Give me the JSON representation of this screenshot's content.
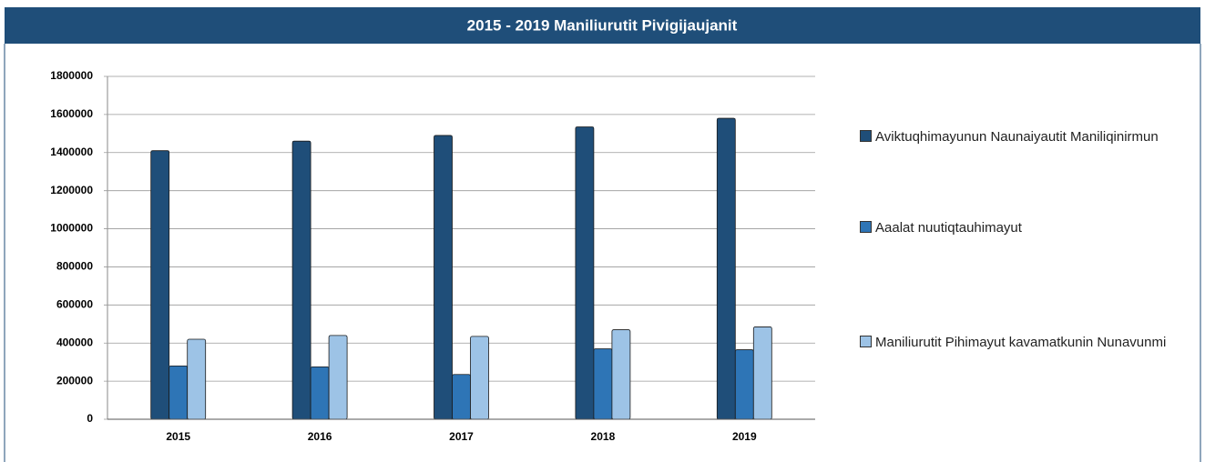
{
  "chart_data": {
    "type": "bar",
    "title": "2015 - 2019 Maniliurutit Pivigijaujanit",
    "categories": [
      "2015",
      "2016",
      "2017",
      "2018",
      "2019"
    ],
    "series": [
      {
        "name": "Aviktuqhimayunun Naunaiyautit Maniliqinirmun",
        "color": "#1f4e79",
        "values": [
          1410000,
          1460000,
          1490000,
          1535000,
          1580000
        ]
      },
      {
        "name": "Aaalat nuutiqtauhimayut",
        "color": "#2e75b6",
        "values": [
          280000,
          275000,
          235000,
          370000,
          365000
        ]
      },
      {
        "name": "Maniliurutit Pihimayut kavamatkunin Nunavunmi",
        "color": "#9dc3e6",
        "values": [
          420000,
          440000,
          435000,
          470000,
          485000
        ]
      }
    ],
    "ylim": [
      0,
      1800000
    ],
    "yticks": [
      0,
      200000,
      400000,
      600000,
      800000,
      1000000,
      1200000,
      1400000,
      1600000,
      1800000
    ],
    "grid": true
  }
}
